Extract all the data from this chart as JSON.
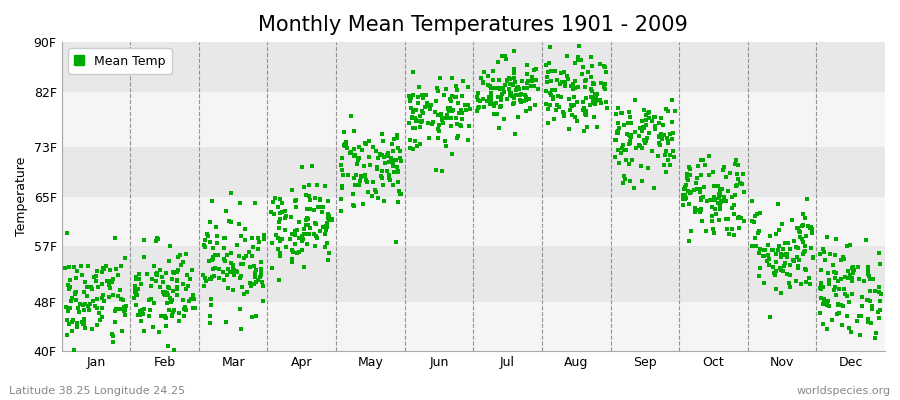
{
  "title": "Monthly Mean Temperatures 1901 - 2009",
  "ylabel": "Temperature",
  "bottom_left_text": "Latitude 38.25 Longitude 24.25",
  "bottom_right_text": "worldspecies.org",
  "legend_label": "Mean Temp",
  "dot_color": "#00aa00",
  "background_color": "#ffffff",
  "band_color_light": "#f5f5f5",
  "band_color_dark": "#e8e8e8",
  "ytick_labels": [
    "40F",
    "48F",
    "57F",
    "65F",
    "73F",
    "82F",
    "90F"
  ],
  "ytick_values": [
    40,
    48,
    57,
    65,
    73,
    82,
    90
  ],
  "ylim": [
    40,
    90
  ],
  "months": [
    "Jan",
    "Feb",
    "Mar",
    "Apr",
    "May",
    "Jun",
    "Jul",
    "Aug",
    "Sep",
    "Oct",
    "Nov",
    "Dec"
  ],
  "month_means_F": [
    48.2,
    49.1,
    54.5,
    60.8,
    69.8,
    77.9,
    82.4,
    81.5,
    74.3,
    65.3,
    56.3,
    50.0
  ],
  "month_stds_F": [
    4.0,
    4.2,
    4.0,
    3.5,
    3.5,
    3.0,
    2.5,
    3.0,
    3.5,
    3.5,
    3.8,
    4.0
  ],
  "n_years": 109,
  "title_fontsize": 15,
  "axis_label_fontsize": 9,
  "tick_fontsize": 9,
  "annotation_fontsize": 8
}
